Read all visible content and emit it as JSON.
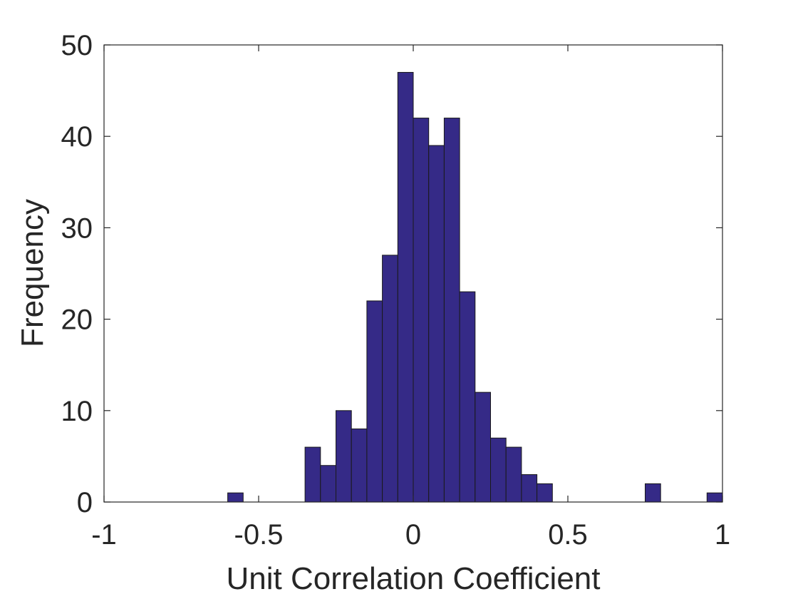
{
  "chart_data": {
    "type": "bar",
    "xlabel": "Unit Correlation Coefficient",
    "ylabel": "Frequency",
    "xlim": [
      -1,
      1
    ],
    "ylim": [
      0,
      50
    ],
    "xticks": [
      {
        "value": -1,
        "label": "-1"
      },
      {
        "value": -0.5,
        "label": "-0.5"
      },
      {
        "value": 0,
        "label": "0"
      },
      {
        "value": 0.5,
        "label": "0.5"
      },
      {
        "value": 1,
        "label": "1"
      }
    ],
    "yticks": [
      {
        "value": 0,
        "label": "0"
      },
      {
        "value": 10,
        "label": "10"
      },
      {
        "value": 20,
        "label": "20"
      },
      {
        "value": 30,
        "label": "30"
      },
      {
        "value": 40,
        "label": "40"
      },
      {
        "value": 50,
        "label": "50"
      }
    ],
    "grid": false,
    "bar_color": "#352a87",
    "bin_width": 0.05,
    "bins": [
      {
        "x0": -0.6,
        "x1": -0.55,
        "count": 1
      },
      {
        "x0": -0.35,
        "x1": -0.3,
        "count": 6
      },
      {
        "x0": -0.3,
        "x1": -0.25,
        "count": 4
      },
      {
        "x0": -0.25,
        "x1": -0.2,
        "count": 10
      },
      {
        "x0": -0.2,
        "x1": -0.15,
        "count": 8
      },
      {
        "x0": -0.15,
        "x1": -0.1,
        "count": 22
      },
      {
        "x0": -0.1,
        "x1": -0.05,
        "count": 27
      },
      {
        "x0": -0.05,
        "x1": 0.0,
        "count": 47
      },
      {
        "x0": 0.0,
        "x1": 0.05,
        "count": 42
      },
      {
        "x0": 0.05,
        "x1": 0.1,
        "count": 39
      },
      {
        "x0": 0.1,
        "x1": 0.15,
        "count": 42
      },
      {
        "x0": 0.15,
        "x1": 0.2,
        "count": 23
      },
      {
        "x0": 0.2,
        "x1": 0.25,
        "count": 12
      },
      {
        "x0": 0.25,
        "x1": 0.3,
        "count": 7
      },
      {
        "x0": 0.3,
        "x1": 0.35,
        "count": 6
      },
      {
        "x0": 0.35,
        "x1": 0.4,
        "count": 3
      },
      {
        "x0": 0.4,
        "x1": 0.45,
        "count": 2
      },
      {
        "x0": 0.75,
        "x1": 0.8,
        "count": 2
      },
      {
        "x0": 0.95,
        "x1": 1.0,
        "count": 1
      }
    ]
  }
}
